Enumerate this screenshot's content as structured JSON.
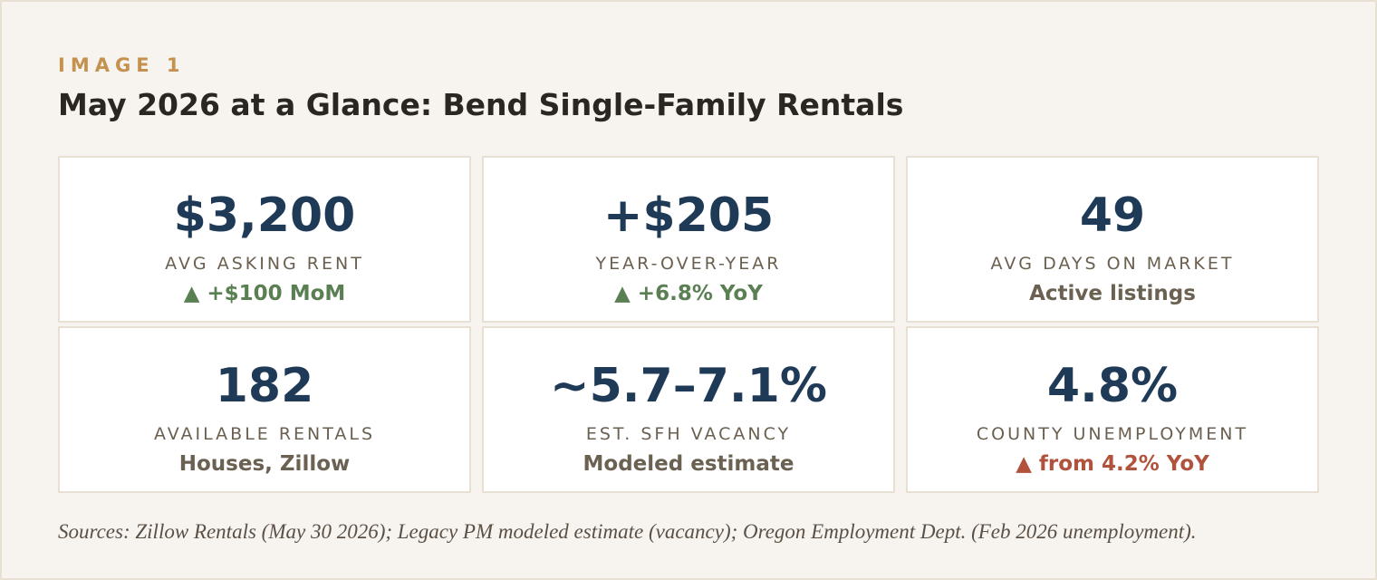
{
  "header": {
    "eyebrow": "IMAGE 1",
    "title": "May 2026 at a Glance: Bend Single-Family Rentals"
  },
  "cards": [
    {
      "value": "$3,200",
      "label": "AVG ASKING RENT",
      "note": "▲ +$100 MoM",
      "note_color": "#5a7f52"
    },
    {
      "value": "+$205",
      "label": "YEAR-OVER-YEAR",
      "note": "▲ +6.8% YoY",
      "note_color": "#5a7f52"
    },
    {
      "value": "49",
      "label": "AVG DAYS ON MARKET",
      "note": "Active listings",
      "note_color": "#6b6152"
    },
    {
      "value": "182",
      "label": "AVAILABLE RENTALS",
      "note": "Houses, Zillow",
      "note_color": "#6b6152"
    },
    {
      "value": "~5.7–7.1%",
      "label": "EST. SFH VACANCY",
      "note": "Modeled estimate",
      "note_color": "#6b6152"
    },
    {
      "value": "4.8%",
      "label": "COUNTY UNEMPLOYMENT",
      "note": "▲ from 4.2% YoY",
      "note_color": "#b0523c"
    }
  ],
  "footer": {
    "sources": "Sources: Zillow Rentals (May 30 2026); Legacy PM modeled estimate (vacancy); Oregon Employment Dept. (Feb 2026 unemployment)."
  }
}
